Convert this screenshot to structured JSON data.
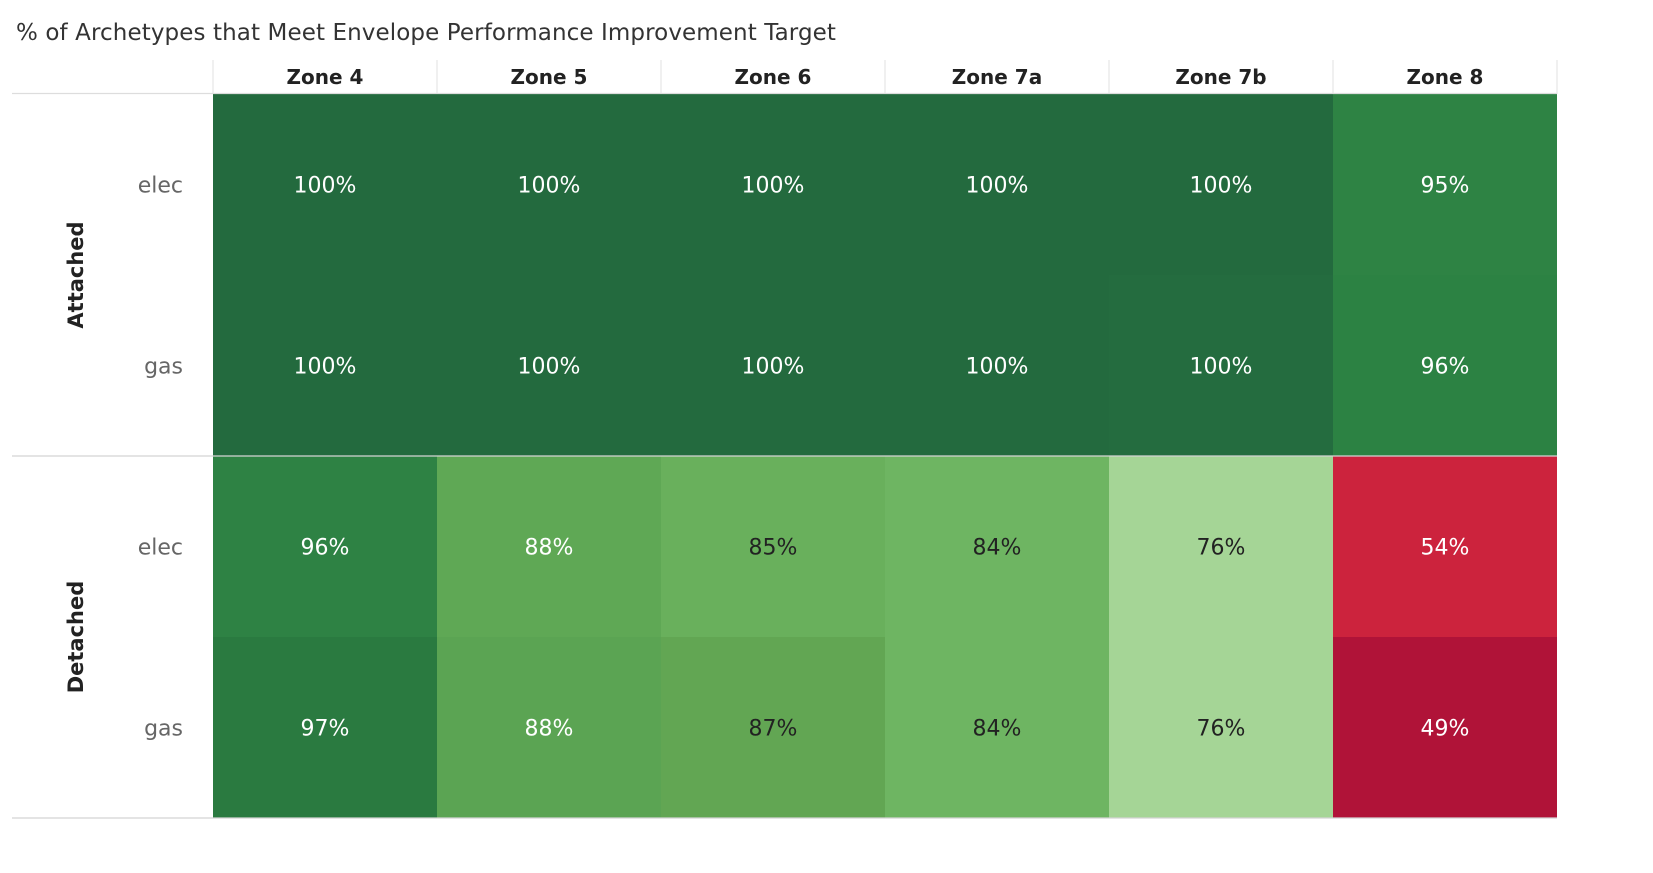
{
  "chart_data": {
    "type": "heatmap",
    "title": "% of Archetypes that Meet Envelope Performance Improvement Target",
    "columns": [
      "Zone 4",
      "Zone 5",
      "Zone 6",
      "Zone 7a",
      "Zone 7b",
      "Zone 8"
    ],
    "row_groups": [
      {
        "name": "Attached",
        "rows": [
          {
            "name": "elec",
            "values": [
              100,
              100,
              100,
              100,
              100,
              95
            ],
            "labels": [
              "100%",
              "100%",
              "100%",
              "100%",
              "100%",
              "95%"
            ]
          },
          {
            "name": "gas",
            "values": [
              100,
              100,
              100,
              100,
              100,
              96
            ],
            "labels": [
              "100%",
              "100%",
              "100%",
              "100%",
              "100%",
              "96%"
            ]
          }
        ]
      },
      {
        "name": "Detached",
        "rows": [
          {
            "name": "elec",
            "values": [
              96,
              88,
              85,
              84,
              76,
              54
            ],
            "labels": [
              "96%",
              "88%",
              "85%",
              "84%",
              "76%",
              "54%"
            ]
          },
          {
            "name": "gas",
            "values": [
              97,
              88,
              87,
              84,
              76,
              49
            ],
            "labels": [
              "97%",
              "88%",
              "87%",
              "84%",
              "76%",
              "49%"
            ]
          }
        ]
      }
    ],
    "cell_colors": [
      [
        "#236a3e",
        "#236a3e",
        "#236a3e",
        "#236a3e",
        "#236a3e",
        "#2e8344"
      ],
      [
        "#236a3e",
        "#236a3e",
        "#236a3e",
        "#236a3e",
        "#246c3f",
        "#2c8243"
      ],
      [
        "#2e8244",
        "#5fa855",
        "#69b05c",
        "#6eb562",
        "#a5d596",
        "#cc233d"
      ],
      [
        "#2a7a40",
        "#5ba453",
        "#62a653",
        "#6eb562",
        "#a5d596",
        "#b01338"
      ]
    ],
    "label_colors": [
      [
        "#ffffff",
        "#ffffff",
        "#ffffff",
        "#ffffff",
        "#ffffff",
        "#ffffff"
      ],
      [
        "#ffffff",
        "#ffffff",
        "#ffffff",
        "#ffffff",
        "#ffffff",
        "#ffffff"
      ],
      [
        "#ffffff",
        "#ffffff",
        "#222222",
        "#222222",
        "#222222",
        "#ffffff"
      ],
      [
        "#ffffff",
        "#ffffff",
        "#222222",
        "#222222",
        "#222222",
        "#ffffff"
      ]
    ],
    "color_scale": "red-green diverging"
  }
}
